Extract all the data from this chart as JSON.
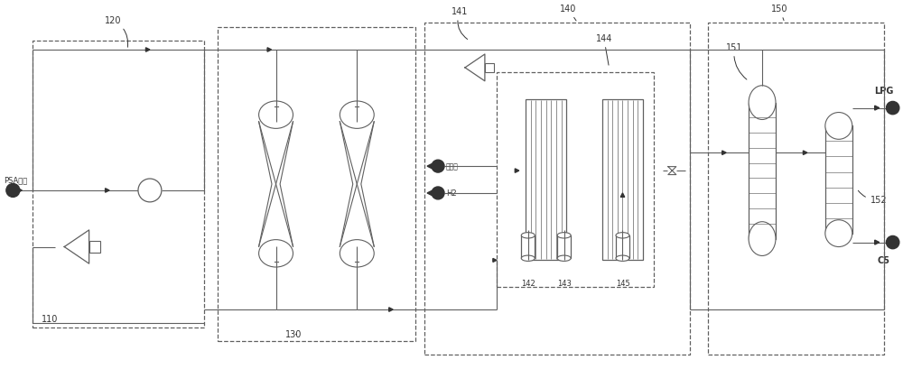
{
  "bg_color": "#ffffff",
  "lc": "#606060",
  "lc2": "#707070",
  "tc": "#333333",
  "fig_w": 10.0,
  "fig_h": 4.1,
  "labels": {
    "psa": "PSA尾气",
    "n110": "110",
    "n120": "120",
    "n130": "130",
    "n140": "140",
    "n141": "141",
    "n142": "142",
    "n143": "143",
    "n144": "144",
    "n145": "145",
    "n150": "150",
    "n151": "151",
    "n152": "152",
    "lpg": "LPG",
    "c5": "C5",
    "fuel": "燃料气",
    "h2": "H2"
  }
}
